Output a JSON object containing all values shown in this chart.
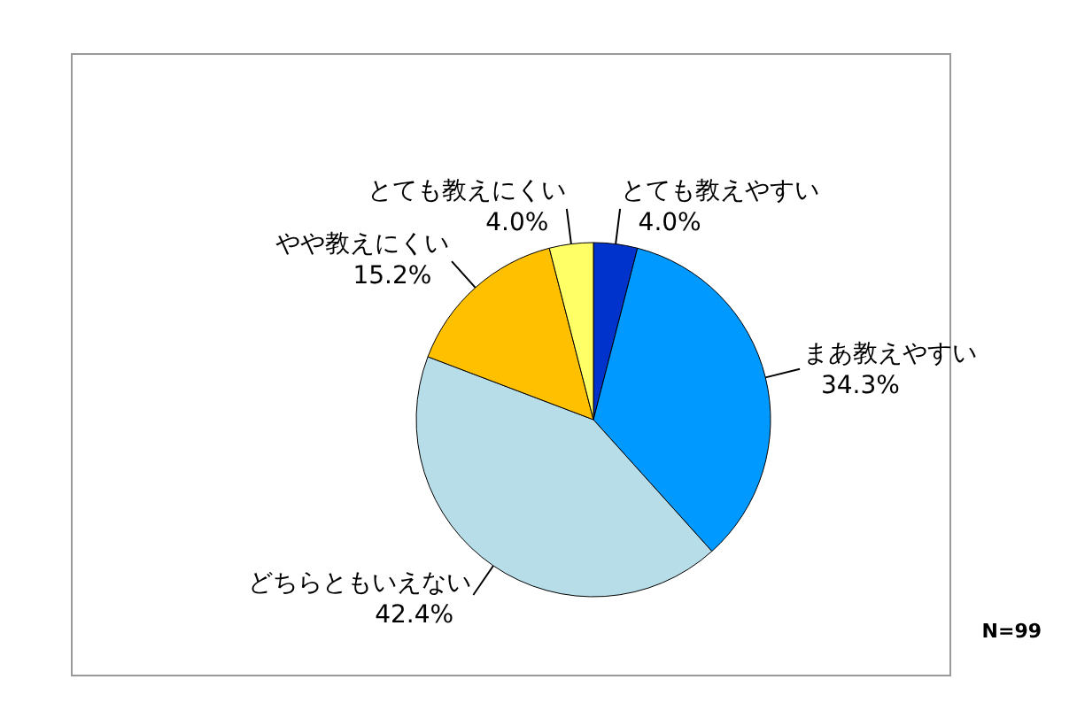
{
  "chart_data": {
    "type": "pie",
    "categories": [
      "とても教えやすい",
      "まあ教えやすい",
      "どちらともいえない",
      "やや教えにくい",
      "とても教えにくい"
    ],
    "values": [
      4.0,
      34.3,
      42.4,
      15.2,
      4.0
    ],
    "value_labels": [
      "4.0%",
      "34.3%",
      "42.4%",
      "15.2%",
      "4.0%"
    ],
    "colors": [
      "#0033cc",
      "#0099ff",
      "#b7dde8",
      "#ffc000",
      "#ffff66"
    ],
    "annotations": [
      "N=99"
    ]
  }
}
